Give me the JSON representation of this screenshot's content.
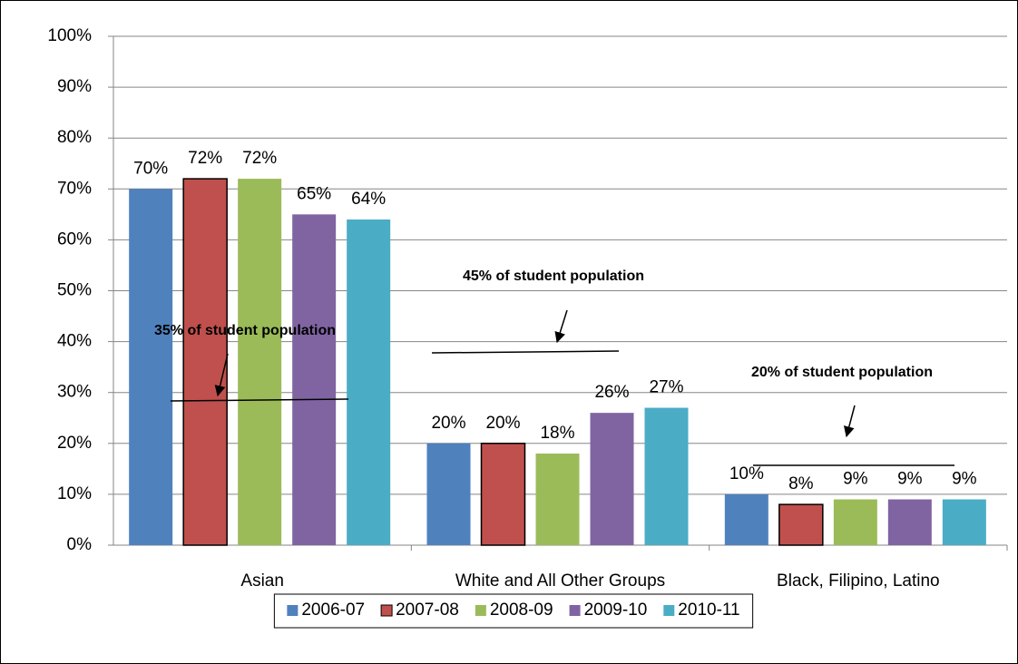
{
  "chart_data": {
    "type": "bar",
    "categories": [
      "Asian",
      "White and All Other Groups",
      "Black, Filipino, Latino"
    ],
    "series": [
      {
        "name": "2006-07",
        "color": "#4f81bd",
        "values": [
          70,
          20,
          10
        ],
        "value_labels": [
          "70%",
          "20%",
          "10%"
        ]
      },
      {
        "name": "2007-08",
        "color": "#c0504d",
        "values": [
          72,
          20,
          8
        ],
        "value_labels": [
          "72%",
          "20%",
          "8%"
        ]
      },
      {
        "name": "2008-09",
        "color": "#9bbb59",
        "values": [
          72,
          18,
          9
        ],
        "value_labels": [
          "72%",
          "18%",
          "9%"
        ]
      },
      {
        "name": "2009-10",
        "color": "#8064a2",
        "values": [
          65,
          26,
          9
        ],
        "value_labels": [
          "65%",
          "26%",
          "9%"
        ]
      },
      {
        "name": "2010-11",
        "color": "#4bacc6",
        "values": [
          64,
          27,
          9
        ],
        "value_labels": [
          "64%",
          "27%",
          "9%"
        ]
      }
    ],
    "ylim": [
      0,
      100
    ],
    "yticks": [
      {
        "value": 0,
        "label": "0%"
      },
      {
        "value": 10,
        "label": "10%"
      },
      {
        "value": 20,
        "label": "20%"
      },
      {
        "value": 30,
        "label": "30%"
      },
      {
        "value": 40,
        "label": "40%"
      },
      {
        "value": 50,
        "label": "50%"
      },
      {
        "value": 60,
        "label": "60%"
      },
      {
        "value": 70,
        "label": "70%"
      },
      {
        "value": 80,
        "label": "80%"
      },
      {
        "value": 90,
        "label": "90%"
      },
      {
        "value": 100,
        "label": "100%"
      }
    ],
    "grid": true,
    "legend": "bottom",
    "annotations": [
      "35% of student population",
      "45% of student population",
      "20% of student population"
    ]
  }
}
